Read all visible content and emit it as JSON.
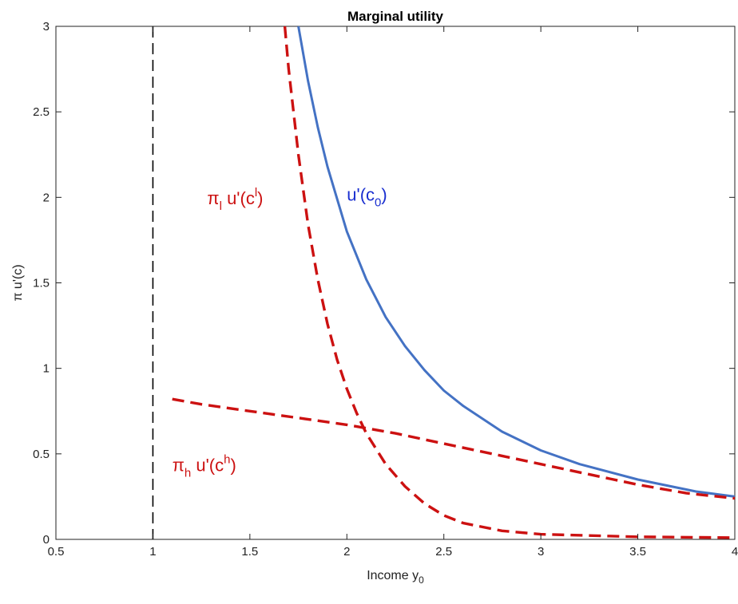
{
  "chart_data": {
    "type": "line",
    "title": "Marginal utility",
    "xlabel": "Income y_0",
    "xlabel_main": "Income y",
    "xlabel_sub": "0",
    "ylabel": "π u'(c)",
    "xlim": [
      0.5,
      4
    ],
    "ylim": [
      0,
      3
    ],
    "xticks": [
      "0.5",
      "1",
      "1.5",
      "2",
      "2.5",
      "3",
      "3.5",
      "4"
    ],
    "yticks": [
      "0",
      "0.5",
      "1",
      "1.5",
      "2",
      "2.5",
      "3"
    ],
    "grid": false,
    "reference_line": {
      "x": 1,
      "style": "dashed",
      "color": "#000000"
    },
    "series": [
      {
        "name": "u'(c_0)",
        "color": "#4472c4",
        "style": "solid",
        "x": [
          1.75,
          1.8,
          1.85,
          1.9,
          2.0,
          2.1,
          2.2,
          2.3,
          2.4,
          2.5,
          2.6,
          2.8,
          3.0,
          3.2,
          3.5,
          3.8,
          4.0
        ],
        "y": [
          3.0,
          2.68,
          2.41,
          2.18,
          1.8,
          1.52,
          1.3,
          1.13,
          0.99,
          0.87,
          0.78,
          0.63,
          0.52,
          0.44,
          0.35,
          0.28,
          0.25
        ]
      },
      {
        "name": "π_l u'(c^l)",
        "color": "#cc1111",
        "style": "dashed",
        "x": [
          1.68,
          1.7,
          1.75,
          1.8,
          1.85,
          1.9,
          1.95,
          2.0,
          2.05,
          2.1,
          2.2,
          2.3,
          2.4,
          2.5,
          2.6,
          2.8,
          3.0,
          3.5,
          4.0
        ],
        "y": [
          3.0,
          2.75,
          2.25,
          1.84,
          1.52,
          1.26,
          1.05,
          0.88,
          0.74,
          0.62,
          0.44,
          0.31,
          0.21,
          0.14,
          0.095,
          0.05,
          0.03,
          0.015,
          0.01
        ]
      },
      {
        "name": "π_h u'(c^h)",
        "color": "#cc1111",
        "style": "dashed",
        "x": [
          1.1,
          1.25,
          1.5,
          1.75,
          2.0,
          2.25,
          2.5,
          2.75,
          3.0,
          3.25,
          3.5,
          3.75,
          4.0
        ],
        "y": [
          0.82,
          0.79,
          0.75,
          0.71,
          0.67,
          0.62,
          0.56,
          0.5,
          0.44,
          0.38,
          0.32,
          0.27,
          0.24
        ]
      }
    ],
    "annotations": [
      {
        "id": "u0",
        "main": "u'(c",
        "sub": "0",
        "sup": "",
        "tail": ")",
        "greek": "",
        "color": "#1a2fd0",
        "x": 2.0,
        "y": 1.98
      },
      {
        "id": "pil",
        "greek": "π",
        "greek_sub": "l",
        "main": " u'(c",
        "sub": "",
        "sup": "l",
        "tail": ")",
        "color": "#cc1111",
        "x": 1.28,
        "y": 1.96
      },
      {
        "id": "pih",
        "greek": "π",
        "greek_sub": "h",
        "main": " u'(c",
        "sub": "",
        "sup": "h",
        "tail": ")",
        "color": "#cc1111",
        "x": 1.1,
        "y": 0.4
      }
    ]
  }
}
